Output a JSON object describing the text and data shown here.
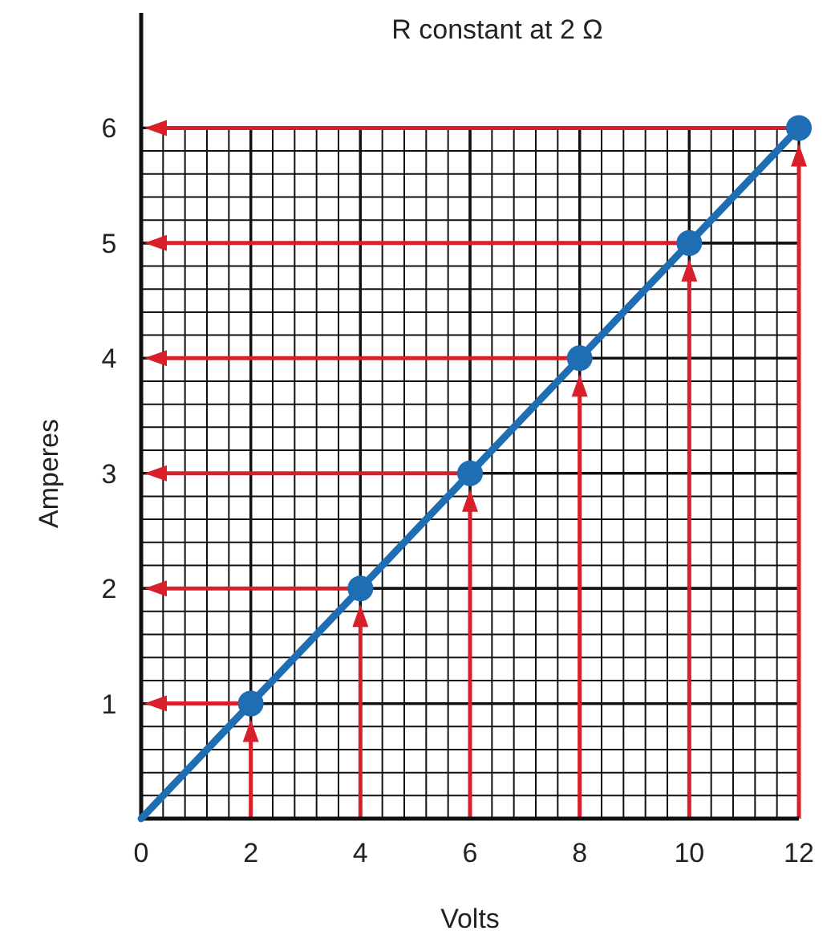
{
  "chart_data": {
    "type": "scatter",
    "title": "R constant at 2 Ω",
    "xlabel": "Volts",
    "ylabel": "Amperes",
    "series": [
      {
        "type": "line",
        "x": [
          0,
          12
        ],
        "values": [
          0,
          6
        ],
        "color": "#1f6db3",
        "marker": "none"
      },
      {
        "x": [
          2,
          4,
          6,
          8,
          10,
          12
        ],
        "values": [
          1,
          2,
          3,
          4,
          5,
          6
        ],
        "color": "#1f6db3",
        "marker": "circle"
      }
    ],
    "xlim": [
      0,
      12
    ],
    "ylim": [
      0,
      7
    ],
    "xticks": [
      0,
      2,
      4,
      6,
      8,
      10,
      12
    ],
    "yticks": [
      1,
      2,
      3,
      4,
      5,
      6
    ],
    "grid": true
  }
}
